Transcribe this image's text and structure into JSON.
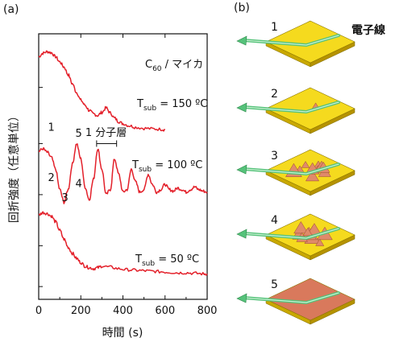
{
  "panel_a_label": "(a)",
  "panel_b_label": "(b)",
  "electron_beam_label": "電子線",
  "chart_data": {
    "type": "line",
    "xlabel": "時間 (s)",
    "ylabel": "回折強度（任意単位）",
    "xlim": [
      0,
      800
    ],
    "xticks": [
      0,
      200,
      400,
      600,
      800
    ],
    "grid": false,
    "series": [
      {
        "annotation_main": "C",
        "annotation_sub": "60",
        "annotation_rest": " / マイカ",
        "temp_main": "T",
        "temp_sub": "sub",
        "temp_rest": " = 150 ºC",
        "color": "#e3202a",
        "x": [
          0,
          20,
          40,
          60,
          80,
          100,
          120,
          140,
          160,
          180,
          200,
          220,
          240,
          260,
          280,
          300,
          320,
          340,
          360,
          380,
          400,
          430,
          460,
          500,
          540,
          580,
          600
        ],
        "values": [
          4.15,
          4.22,
          4.25,
          4.23,
          4.15,
          4.05,
          3.95,
          3.8,
          3.62,
          3.45,
          3.3,
          3.2,
          3.1,
          3.03,
          3.0,
          3.06,
          3.15,
          3.05,
          2.95,
          2.88,
          2.84,
          2.8,
          2.77,
          2.75,
          2.74,
          2.73,
          2.72
        ]
      },
      {
        "temp_main": "T",
        "temp_sub": "sub",
        "temp_rest": " = 100 ºC",
        "color": "#e3202a",
        "x": [
          0,
          20,
          40,
          60,
          80,
          100,
          120,
          140,
          160,
          180,
          200,
          220,
          240,
          260,
          280,
          300,
          320,
          340,
          360,
          380,
          400,
          420,
          440,
          460,
          480,
          500,
          520,
          540,
          560,
          580,
          600,
          620,
          640,
          660,
          680,
          700,
          720,
          740,
          760,
          780,
          800
        ],
        "values": [
          2.3,
          2.35,
          2.28,
          2.18,
          1.95,
          1.55,
          1.3,
          1.55,
          2.05,
          2.45,
          2.15,
          1.6,
          1.35,
          1.75,
          2.35,
          1.95,
          1.45,
          1.55,
          2.15,
          1.85,
          1.5,
          1.55,
          1.95,
          1.7,
          1.5,
          1.55,
          1.85,
          1.65,
          1.5,
          1.55,
          1.65,
          1.55,
          1.52,
          1.58,
          1.55,
          1.5,
          1.55,
          1.6,
          1.55,
          1.52,
          1.5
        ]
      },
      {
        "temp_main": "T",
        "temp_sub": "sub",
        "temp_rest": " = 50 ºC",
        "color": "#e3202a",
        "x": [
          0,
          20,
          40,
          60,
          80,
          100,
          120,
          140,
          160,
          180,
          200,
          220,
          240,
          260,
          280,
          300,
          340,
          380,
          420,
          460,
          500,
          540,
          580,
          620,
          660,
          700,
          740,
          780,
          800
        ],
        "values": [
          1.05,
          1.1,
          1.08,
          1.03,
          0.92,
          0.75,
          0.58,
          0.42,
          0.3,
          0.2,
          0.12,
          0.05,
          0.02,
          0.0,
          0.02,
          0.05,
          0.03,
          0.0,
          -0.02,
          -0.03,
          -0.04,
          -0.05,
          -0.06,
          -0.07,
          -0.08,
          -0.08,
          -0.09,
          -0.1,
          -0.1
        ]
      }
    ],
    "annotations": [
      {
        "text": "1",
        "x": 60,
        "y": 2.7
      },
      {
        "text": "5",
        "x": 190,
        "y": 2.58
      },
      {
        "text": "2",
        "x": 60,
        "y": 1.72
      },
      {
        "text": "4",
        "x": 190,
        "y": 1.6
      },
      {
        "text": "3",
        "x": 125,
        "y": 1.32
      },
      {
        "text": "1 分子層",
        "x": 320,
        "y": 2.6
      }
    ]
  },
  "panel_b_stages": [
    {
      "number": "1"
    },
    {
      "number": "2"
    },
    {
      "number": "3"
    },
    {
      "number": "4"
    },
    {
      "number": "5"
    }
  ]
}
